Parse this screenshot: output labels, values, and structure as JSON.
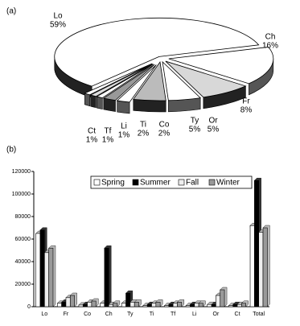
{
  "chart_data": [
    {
      "type": "pie",
      "label": "(a)",
      "categories": [
        "Lo",
        "Ch",
        "Fr",
        "Or",
        "Ty",
        "Co",
        "Ti",
        "Li",
        "Tf",
        "Ct"
      ],
      "values": [
        59,
        16,
        8,
        5,
        5,
        2,
        2,
        1,
        1,
        1
      ],
      "value_labels": [
        "59%",
        "16%",
        "8%",
        "5%",
        "5%",
        "2%",
        "2%",
        "1%",
        "1%",
        "1%"
      ],
      "colors": [
        "#ffffff",
        "#ffffff",
        "#d8d8d8",
        "#ffffff",
        "#bbbbbb",
        "#ffffff",
        "#999999",
        "#ffffff",
        "#dddddd",
        "#ffffff"
      ]
    },
    {
      "type": "bar",
      "label": "(b)",
      "categories": [
        "Lo",
        "Fr",
        "Co",
        "Ch",
        "Ty",
        "Ti",
        "Tf",
        "Li",
        "Or",
        "Ct",
        "Total"
      ],
      "series": [
        {
          "name": "Spring",
          "color": "#ffffff",
          "values": [
            65000,
            3000,
            1500,
            3000,
            3000,
            1000,
            1000,
            1000,
            2000,
            1000,
            72000
          ]
        },
        {
          "name": "Summer",
          "color": "#000000",
          "values": [
            68000,
            4000,
            2000,
            52000,
            12000,
            2000,
            2000,
            2000,
            2000,
            2000,
            112000
          ]
        },
        {
          "name": "Fall",
          "color": "#eeeeee",
          "values": [
            48000,
            8000,
            4000,
            2000,
            4000,
            3000,
            3000,
            3000,
            10000,
            2000,
            66000
          ]
        },
        {
          "name": "Winter",
          "color": "#999999",
          "values": [
            52000,
            10000,
            5000,
            3000,
            4000,
            4000,
            4000,
            3000,
            15000,
            3000,
            70000
          ]
        }
      ],
      "ylim": [
        0,
        120000
      ],
      "yticks": [
        0,
        20000,
        40000,
        60000,
        80000,
        100000,
        120000
      ]
    }
  ]
}
